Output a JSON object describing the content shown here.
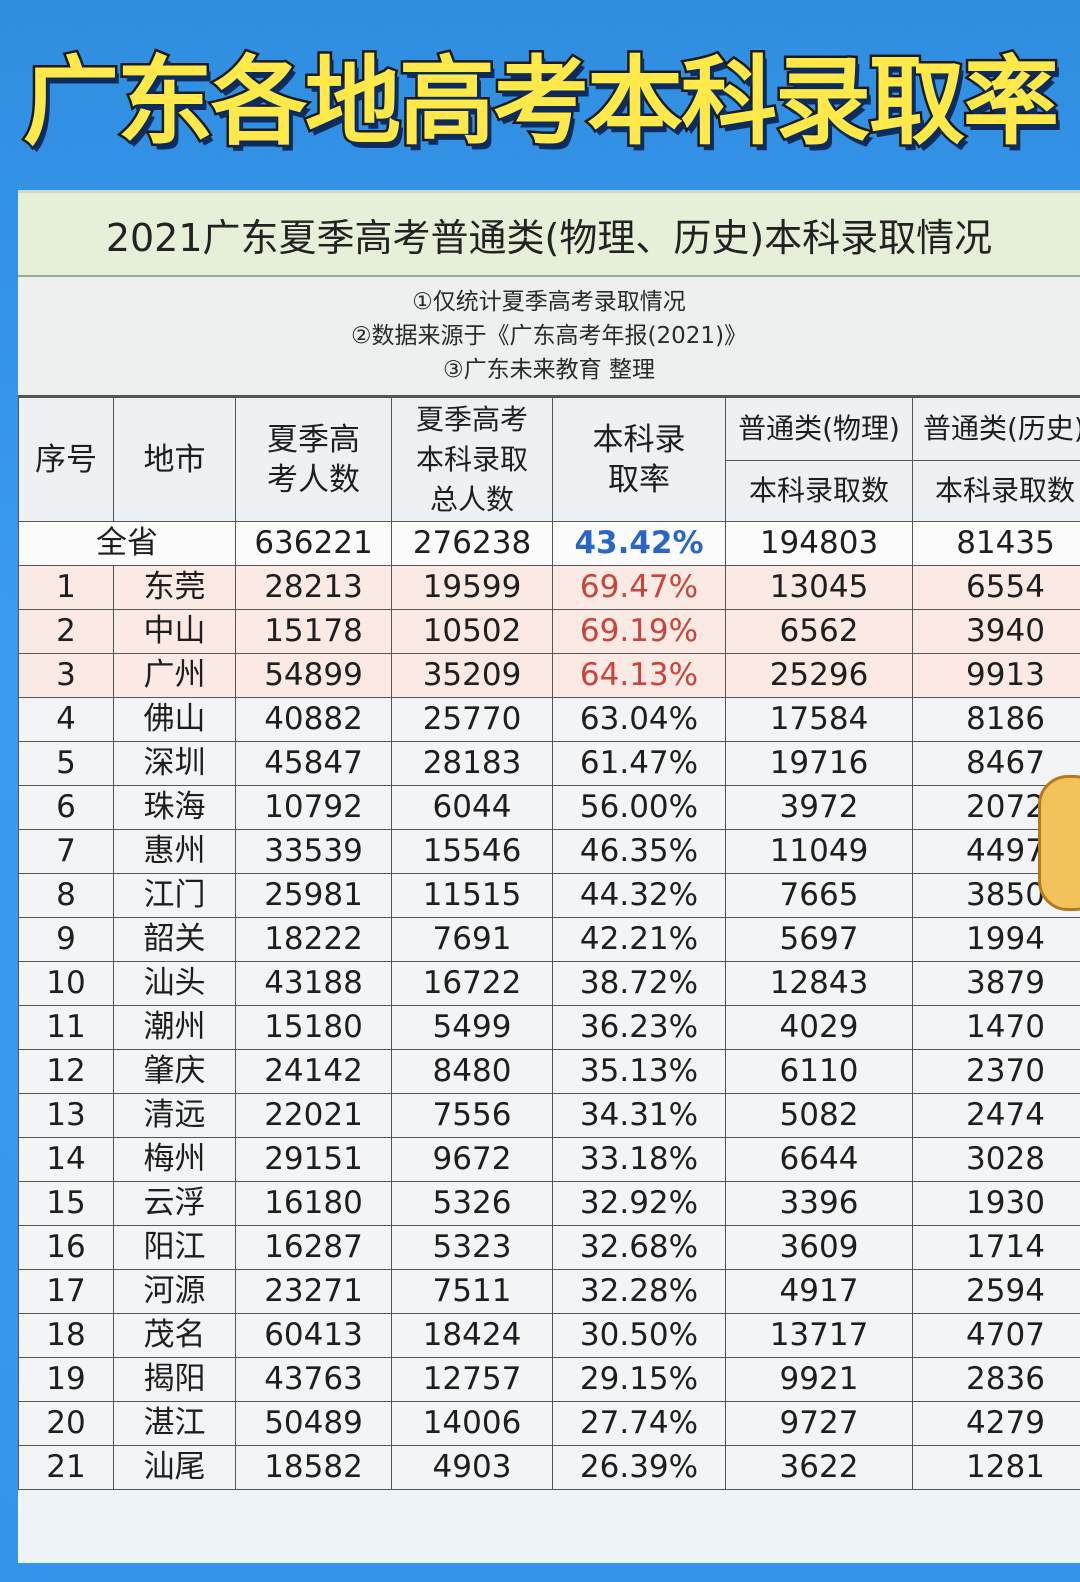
{
  "headline": "广东各地高考本科录取率",
  "subtitle": "2021广东夏季高考普通类(物理、历史)本科录取情况",
  "notes": [
    "①仅统计夏季高考录取情况",
    "②数据来源于《广东高考年报(2021)》",
    "③广东未来教育 整理"
  ],
  "table": {
    "headers": {
      "seq": "序号",
      "city": "地市",
      "applicants": "夏季高考人数",
      "admitted": "夏季高考本科录取总人数",
      "rate": "本科录取率",
      "physics_group": "普通类(物理)",
      "physics_sub": "本科录取数",
      "history_group": "普通类(历史)",
      "history_sub": "本科录取数"
    },
    "total": {
      "label": "全省",
      "applicants": "636221",
      "admitted": "276238",
      "rate": "43.42%",
      "physics": "194803",
      "history": "81435"
    },
    "rows": [
      {
        "seq": "1",
        "city": "东莞",
        "applicants": "28213",
        "admitted": "19599",
        "rate": "69.47%",
        "physics": "13045",
        "history": "6554"
      },
      {
        "seq": "2",
        "city": "中山",
        "applicants": "15178",
        "admitted": "10502",
        "rate": "69.19%",
        "physics": "6562",
        "history": "3940"
      },
      {
        "seq": "3",
        "city": "广州",
        "applicants": "54899",
        "admitted": "35209",
        "rate": "64.13%",
        "physics": "25296",
        "history": "9913"
      },
      {
        "seq": "4",
        "city": "佛山",
        "applicants": "40882",
        "admitted": "25770",
        "rate": "63.04%",
        "physics": "17584",
        "history": "8186"
      },
      {
        "seq": "5",
        "city": "深圳",
        "applicants": "45847",
        "admitted": "28183",
        "rate": "61.47%",
        "physics": "19716",
        "history": "8467"
      },
      {
        "seq": "6",
        "city": "珠海",
        "applicants": "10792",
        "admitted": "6044",
        "rate": "56.00%",
        "physics": "3972",
        "history": "2072"
      },
      {
        "seq": "7",
        "city": "惠州",
        "applicants": "33539",
        "admitted": "15546",
        "rate": "46.35%",
        "physics": "11049",
        "history": "4497"
      },
      {
        "seq": "8",
        "city": "江门",
        "applicants": "25981",
        "admitted": "11515",
        "rate": "44.32%",
        "physics": "7665",
        "history": "3850"
      },
      {
        "seq": "9",
        "city": "韶关",
        "applicants": "18222",
        "admitted": "7691",
        "rate": "42.21%",
        "physics": "5697",
        "history": "1994"
      },
      {
        "seq": "10",
        "city": "汕头",
        "applicants": "43188",
        "admitted": "16722",
        "rate": "38.72%",
        "physics": "12843",
        "history": "3879"
      },
      {
        "seq": "11",
        "city": "潮州",
        "applicants": "15180",
        "admitted": "5499",
        "rate": "36.23%",
        "physics": "4029",
        "history": "1470"
      },
      {
        "seq": "12",
        "city": "肇庆",
        "applicants": "24142",
        "admitted": "8480",
        "rate": "35.13%",
        "physics": "6110",
        "history": "2370"
      },
      {
        "seq": "13",
        "city": "清远",
        "applicants": "22021",
        "admitted": "7556",
        "rate": "34.31%",
        "physics": "5082",
        "history": "2474"
      },
      {
        "seq": "14",
        "city": "梅州",
        "applicants": "29151",
        "admitted": "9672",
        "rate": "33.18%",
        "physics": "6644",
        "history": "3028"
      },
      {
        "seq": "15",
        "city": "云浮",
        "applicants": "16180",
        "admitted": "5326",
        "rate": "32.92%",
        "physics": "3396",
        "history": "1930"
      },
      {
        "seq": "16",
        "city": "阳江",
        "applicants": "16287",
        "admitted": "5323",
        "rate": "32.68%",
        "physics": "3609",
        "history": "1714"
      },
      {
        "seq": "17",
        "city": "河源",
        "applicants": "23271",
        "admitted": "7511",
        "rate": "32.28%",
        "physics": "4917",
        "history": "2594"
      },
      {
        "seq": "18",
        "city": "茂名",
        "applicants": "60413",
        "admitted": "18424",
        "rate": "30.50%",
        "physics": "13717",
        "history": "4707"
      },
      {
        "seq": "19",
        "city": "揭阳",
        "applicants": "43763",
        "admitted": "12757",
        "rate": "29.15%",
        "physics": "9921",
        "history": "2836"
      },
      {
        "seq": "20",
        "city": "湛江",
        "applicants": "50489",
        "admitted": "14006",
        "rate": "27.74%",
        "physics": "9727",
        "history": "4279"
      },
      {
        "seq": "21",
        "city": "汕尾",
        "applicants": "18582",
        "admitted": "4903",
        "rate": "26.39%",
        "physics": "3622",
        "history": "1281"
      }
    ]
  },
  "colors": {
    "background": "#3496ea",
    "headline_fill": "#ffe94a",
    "total_rate": "#2a66c8",
    "top_rate": "#c9443a",
    "top_row_bg": "#fbe9e4"
  }
}
